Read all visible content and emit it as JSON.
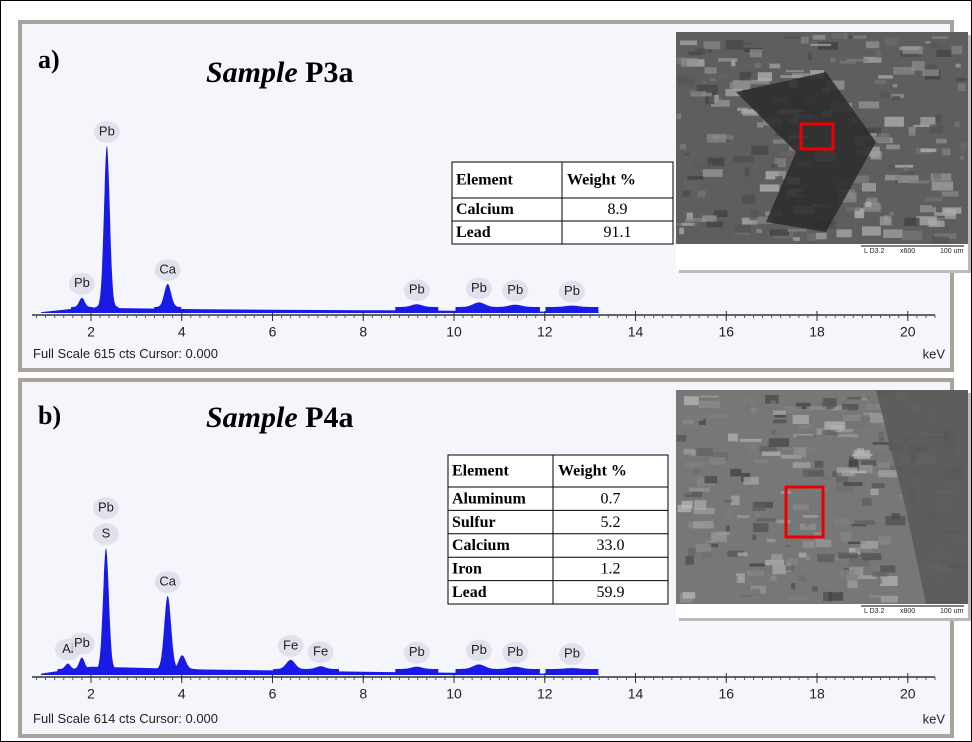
{
  "chart_data": [
    {
      "type": "spectrum",
      "panel_label": "a)",
      "title_italic": "Sample",
      "title_name": "P3a",
      "xlim": [
        0.7,
        20.6
      ],
      "xticks": [
        2,
        4,
        6,
        8,
        10,
        12,
        14,
        16,
        18,
        20
      ],
      "x_unit": "keV",
      "footer_prefix": "Full Scale",
      "full_scale": 615,
      "footer_suffix": "cts Cursor: 0.000",
      "color": "#1a1ae6",
      "continuum": {
        "x": [
          0.9,
          1.5,
          2.0,
          3.0,
          4.5,
          6.0,
          8.0,
          10.0,
          12.0,
          13.2
        ],
        "counts": [
          2,
          8,
          12,
          10,
          8,
          7,
          6,
          5,
          3,
          1
        ]
      },
      "peaks": [
        {
          "labels": [
            "Pb"
          ],
          "energy": 1.8,
          "counts": 20
        },
        {
          "labels": [
            "Pb"
          ],
          "energy": 2.35,
          "counts": 350
        },
        {
          "labels": [
            "Ca"
          ],
          "energy": 3.69,
          "counts": 50
        },
        {
          "labels": [
            "Pb"
          ],
          "energy": 9.18,
          "counts": 6
        },
        {
          "labels": [
            "Pb"
          ],
          "energy": 10.55,
          "counts": 10
        },
        {
          "labels": [
            "Pb"
          ],
          "energy": 11.35,
          "counts": 5
        },
        {
          "labels": [
            "Pb"
          ],
          "energy": 12.6,
          "counts": 3
        }
      ],
      "table": {
        "header": [
          "Element",
          "Weight %"
        ],
        "rows": [
          [
            "Calcium",
            "8.9"
          ],
          [
            "Lead",
            "91.1"
          ]
        ]
      },
      "image": {
        "caption": [
          "L D3.2",
          "x600",
          "100 um"
        ]
      }
    },
    {
      "type": "spectrum",
      "panel_label": "b)",
      "title_italic": "Sample",
      "title_name": "P4a",
      "xlim": [
        0.7,
        20.6
      ],
      "xticks": [
        2,
        4,
        6,
        8,
        10,
        12,
        14,
        16,
        18,
        20
      ],
      "x_unit": "keV",
      "footer_prefix": "Full Scale",
      "full_scale": 614,
      "footer_suffix": "cts Cursor: 0.000",
      "color": "#1a1ae6",
      "continuum": {
        "x": [
          0.9,
          1.5,
          2.0,
          3.0,
          4.5,
          6.0,
          8.0,
          10.0,
          12.0,
          13.2
        ],
        "counts": [
          3,
          12,
          18,
          16,
          12,
          10,
          7,
          5,
          3,
          1
        ]
      },
      "peaks": [
        {
          "labels": [
            "Al"
          ],
          "energy": 1.49,
          "counts": 12
        },
        {
          "labels": [
            "Pb"
          ],
          "energy": 1.8,
          "counts": 25
        },
        {
          "labels": [
            "Pb",
            "S"
          ],
          "energy": 2.33,
          "counts": 265
        },
        {
          "labels": [
            "Ca"
          ],
          "energy": 3.69,
          "counts": 160
        },
        {
          "labels": null,
          "energy": 4.01,
          "counts": 30
        },
        {
          "labels": [
            "Fe"
          ],
          "energy": 6.4,
          "counts": 20
        },
        {
          "labels": [
            "Fe"
          ],
          "energy": 7.06,
          "counts": 6
        },
        {
          "labels": [
            "Pb"
          ],
          "energy": 9.18,
          "counts": 5
        },
        {
          "labels": [
            "Pb"
          ],
          "energy": 10.55,
          "counts": 10
        },
        {
          "labels": [
            "Pb"
          ],
          "energy": 11.35,
          "counts": 5
        },
        {
          "labels": [
            "Pb"
          ],
          "energy": 12.6,
          "counts": 2
        }
      ],
      "table": {
        "header": [
          "Element",
          "Weight %"
        ],
        "rows": [
          [
            "Aluminum",
            "0.7"
          ],
          [
            "Sulfur",
            "5.2"
          ],
          [
            "Calcium",
            "33.0"
          ],
          [
            "Iron",
            "1.2"
          ],
          [
            "Lead",
            "59.9"
          ]
        ]
      },
      "image": {
        "caption": [
          "L D3.2",
          "x800",
          "100 um"
        ]
      }
    }
  ]
}
